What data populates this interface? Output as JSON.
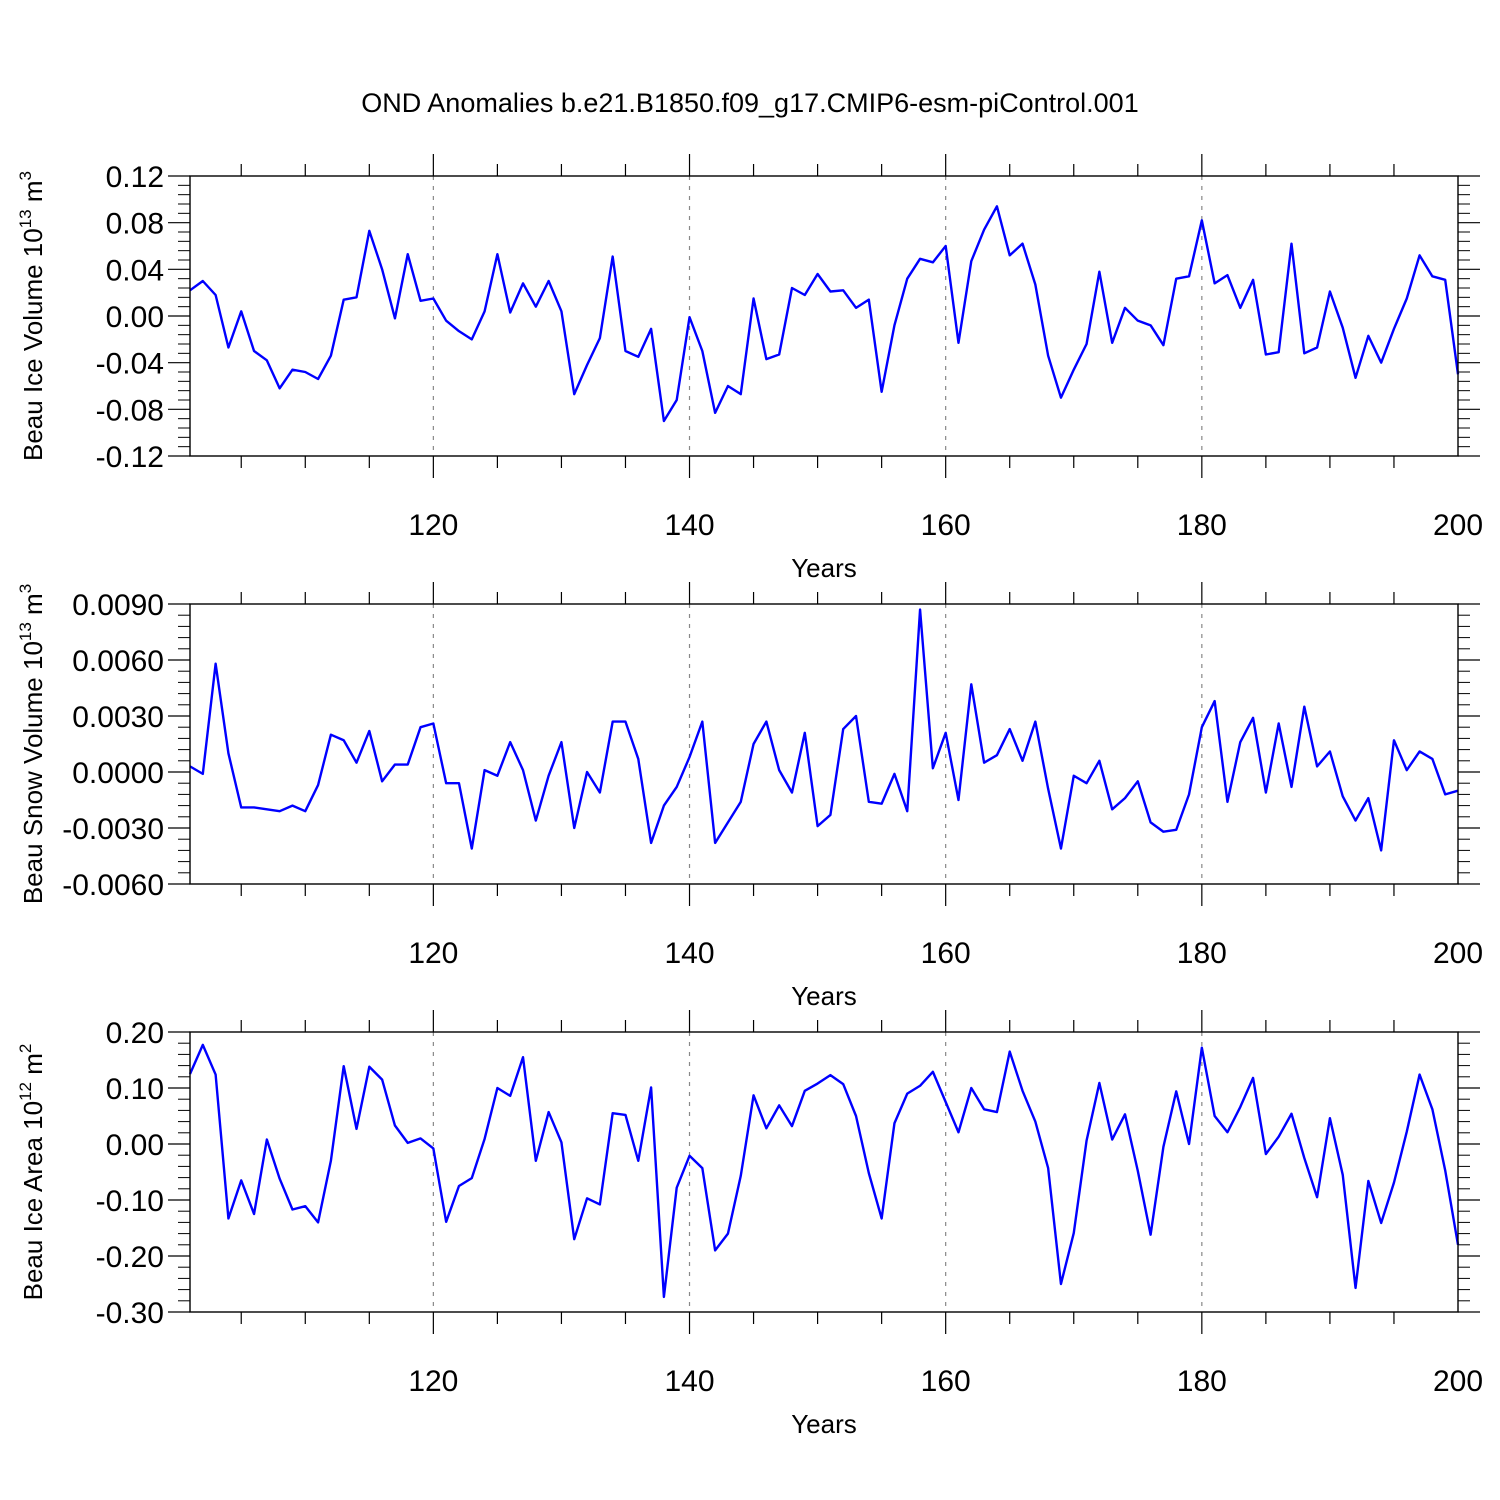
{
  "chart_data": {
    "type": "line",
    "title": "OND Anomalies b.e21.B1850.f09_g17.CMIP6-esm-piControl.001",
    "line_color": "#0000ff",
    "grid": "dashed vertical gridlines at major x ticks",
    "x_label": "Years",
    "x_range": [
      101,
      200
    ],
    "x_ticks": [
      120,
      140,
      160,
      180,
      200
    ],
    "x_tick_labels": [
      "120",
      "140",
      "160",
      "180",
      "200"
    ],
    "panels": [
      {
        "ylabel": {
          "main": "Beau Ice Volume 10",
          "sup": "13",
          "unit": " m",
          "unit_sup": "3"
        },
        "ylim": [
          -0.12,
          0.12
        ],
        "y_ticks": [
          -0.12,
          -0.08,
          -0.04,
          0.0,
          0.04,
          0.08,
          0.12
        ],
        "y_tick_labels": [
          "-0.12",
          "-0.08",
          "-0.04",
          "0.00",
          "0.04",
          "0.08",
          "0.12"
        ],
        "x_tick_labels": [
          "120",
          "140",
          "160",
          "180",
          "200"
        ],
        "xlabel": "Years",
        "series": [
          {
            "name": "Beau Ice Volume",
            "x_start": 101,
            "values": [
              0.022,
              0.03,
              0.018,
              -0.027,
              0.004,
              -0.03,
              -0.038,
              -0.062,
              -0.046,
              -0.048,
              -0.054,
              -0.034,
              0.014,
              0.016,
              0.073,
              0.04,
              -0.002,
              0.053,
              0.013,
              0.015,
              -0.004,
              -0.013,
              -0.02,
              0.004,
              0.053,
              0.003,
              0.028,
              0.008,
              0.03,
              0.004,
              -0.067,
              -0.042,
              -0.019,
              0.051,
              -0.03,
              -0.035,
              -0.011,
              -0.09,
              -0.072,
              -0.001,
              -0.03,
              -0.083,
              -0.06,
              -0.067,
              0.015,
              -0.037,
              -0.033,
              0.024,
              0.018,
              0.036,
              0.021,
              0.022,
              0.007,
              0.014,
              -0.065,
              -0.008,
              0.032,
              0.049,
              0.046,
              0.06,
              -0.023,
              0.047,
              0.074,
              0.094,
              0.052,
              0.062,
              0.027,
              -0.034,
              -0.07,
              -0.046,
              -0.024,
              0.038,
              -0.023,
              0.007,
              -0.004,
              -0.008,
              -0.025,
              0.032,
              0.034,
              0.082,
              0.028,
              0.035,
              0.007,
              0.031,
              -0.033,
              -0.031,
              0.062,
              -0.032,
              -0.027,
              0.021,
              -0.01,
              -0.053,
              -0.017,
              -0.04,
              -0.011,
              0.015,
              0.052,
              0.034,
              0.031,
              -0.05
            ]
          }
        ]
      },
      {
        "ylabel": {
          "main": "Beau Snow Volume 10",
          "sup": "13",
          "unit": " m",
          "unit_sup": "3"
        },
        "ylim": [
          -0.006,
          0.009
        ],
        "y_ticks": [
          -0.006,
          -0.003,
          0.0,
          0.003,
          0.006,
          0.009
        ],
        "y_tick_labels": [
          "-0.0060",
          "-0.0030",
          "0.0000",
          "0.0030",
          "0.0060",
          "0.0090"
        ],
        "x_tick_labels": [
          "120",
          "140",
          "160",
          "180",
          "200"
        ],
        "xlabel": "Years",
        "series": [
          {
            "name": "Beau Snow Volume",
            "x_start": 101,
            "values": [
              0.0003,
              -0.0001,
              0.0058,
              0.001,
              -0.0019,
              -0.0019,
              -0.002,
              -0.0021,
              -0.0018,
              -0.0021,
              -0.0007,
              0.002,
              0.0017,
              0.0005,
              0.0022,
              -0.0005,
              0.0004,
              0.0004,
              0.0024,
              0.0026,
              -0.0006,
              -0.0006,
              -0.0041,
              0.0001,
              -0.0002,
              0.0016,
              0.0001,
              -0.0026,
              -0.0002,
              0.0016,
              -0.003,
              0.0,
              -0.0011,
              0.0027,
              0.0027,
              0.0007,
              -0.0038,
              -0.0018,
              -0.0008,
              0.0008,
              0.0027,
              -0.0038,
              -0.0027,
              -0.0016,
              0.0015,
              0.0027,
              0.0001,
              -0.0011,
              0.0021,
              -0.0029,
              -0.0023,
              0.0023,
              0.003,
              -0.0016,
              -0.0017,
              -0.0001,
              -0.0021,
              0.0087,
              0.0002,
              0.0021,
              -0.0015,
              0.0047,
              0.0005,
              0.0009,
              0.0023,
              0.0006,
              0.0027,
              -0.0009,
              -0.0041,
              -0.0002,
              -0.0006,
              0.0006,
              -0.002,
              -0.0014,
              -0.0005,
              -0.0027,
              -0.0032,
              -0.0031,
              -0.0012,
              0.0024,
              0.0038,
              -0.0016,
              0.0016,
              0.0029,
              -0.0011,
              0.0026,
              -0.0008,
              0.0035,
              0.0003,
              0.0011,
              -0.0013,
              -0.0026,
              -0.0014,
              -0.0042,
              0.0017,
              0.0001,
              0.0011,
              0.0007,
              -0.0012,
              -0.001
            ]
          }
        ]
      },
      {
        "ylabel": {
          "main": "Beau Ice Area 10",
          "sup": "12",
          "unit": " m",
          "unit_sup": "2"
        },
        "ylim": [
          -0.3,
          0.2
        ],
        "y_ticks": [
          -0.3,
          -0.2,
          -0.1,
          0.0,
          0.1,
          0.2
        ],
        "y_tick_labels": [
          "-0.30",
          "-0.20",
          "-0.10",
          "0.00",
          "0.10",
          "0.20"
        ],
        "x_tick_labels": [
          "120",
          "140",
          "160",
          "180",
          "200"
        ],
        "xlabel": "Years",
        "series": [
          {
            "name": "Beau Ice Area",
            "x_start": 101,
            "values": [
              0.125,
              0.177,
              0.124,
              -0.133,
              -0.065,
              -0.125,
              0.008,
              -0.062,
              -0.117,
              -0.111,
              -0.14,
              -0.03,
              0.139,
              0.027,
              0.138,
              0.115,
              0.033,
              0.002,
              0.01,
              -0.008,
              -0.139,
              -0.075,
              -0.061,
              0.009,
              0.1,
              0.086,
              0.155,
              -0.03,
              0.057,
              0.003,
              -0.17,
              -0.097,
              -0.108,
              0.055,
              0.052,
              -0.03,
              0.101,
              -0.273,
              -0.078,
              -0.021,
              -0.043,
              -0.19,
              -0.16,
              -0.057,
              0.087,
              0.028,
              0.069,
              0.032,
              0.095,
              0.108,
              0.123,
              0.107,
              0.05,
              -0.052,
              -0.133,
              0.037,
              0.09,
              0.104,
              0.129,
              0.075,
              0.021,
              0.1,
              0.062,
              0.057,
              0.165,
              0.095,
              0.04,
              -0.043,
              -0.25,
              -0.159,
              0.006,
              0.109,
              0.008,
              0.053,
              -0.048,
              -0.162,
              -0.005,
              0.094,
              0.0,
              0.172,
              0.05,
              0.021,
              0.066,
              0.118,
              -0.018,
              0.013,
              0.054,
              -0.025,
              -0.095,
              0.046,
              -0.055,
              -0.257,
              -0.066,
              -0.141,
              -0.069,
              0.022,
              0.124,
              0.062,
              -0.047,
              -0.18
            ]
          }
        ]
      }
    ]
  }
}
